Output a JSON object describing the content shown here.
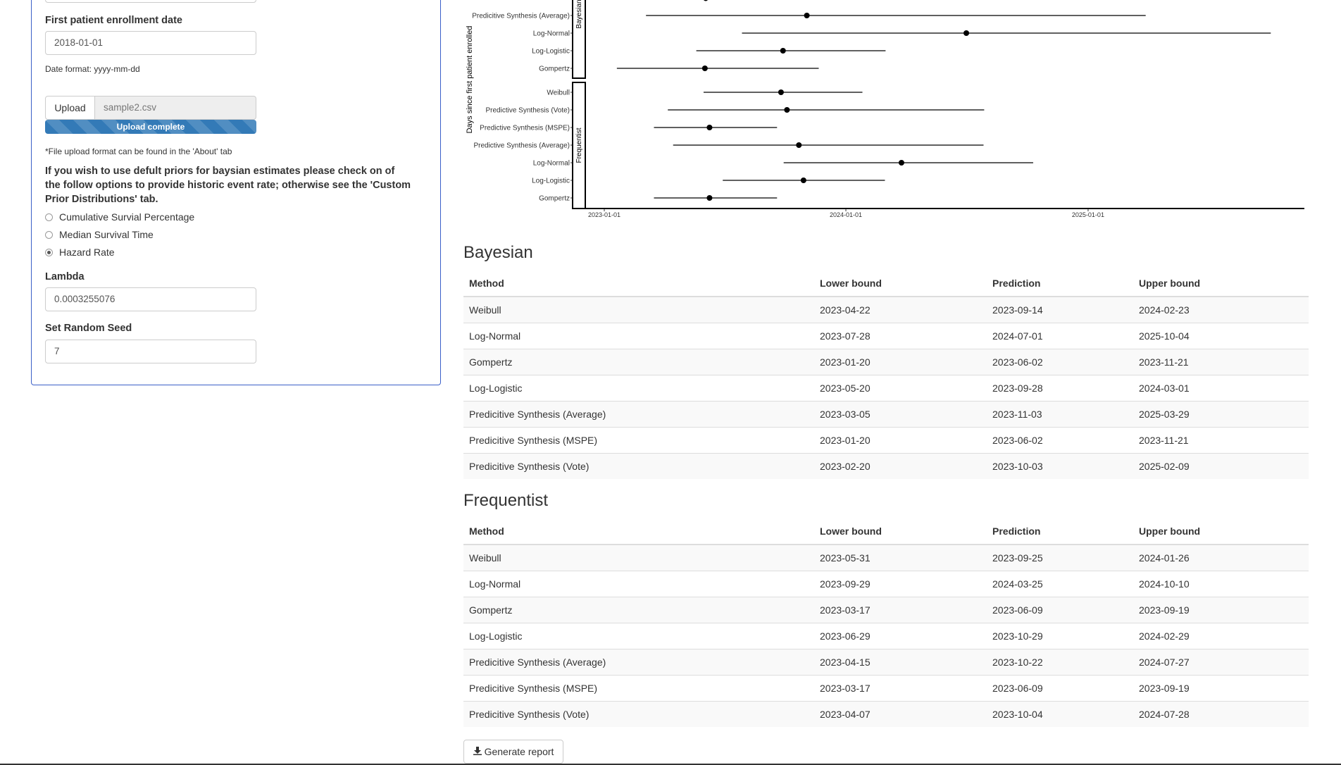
{
  "sidebar": {
    "enrollment_label": "First patient enrollment date",
    "enrollment_value": "2018-01-01",
    "date_format_note": "Date format: yyyy-mm-dd",
    "upload_button": "Upload",
    "upload_filename": "sample2.csv",
    "upload_status": "Upload complete",
    "upload_progress": 1.0,
    "file_format_note": "*File upload format can be found in the 'About' tab",
    "priors_instruction": "If you wish to use defult priors for baysian estimates please check on of the follow options to provide historic event rate; otherwise see the 'Custom Prior Distributions' tab.",
    "prior_options": [
      {
        "label": "Cumulative Survial Percentage",
        "checked": false
      },
      {
        "label": "Median Survival Time",
        "checked": false
      },
      {
        "label": "Hazard Rate",
        "checked": true
      }
    ],
    "lambda_label": "Lambda",
    "lambda_value": "0.0003255076",
    "seed_label": "Set Random Seed",
    "seed_value": "7"
  },
  "chart_data": {
    "type": "scatter",
    "ylabel": "Days since first patient enrolled",
    "x_tick_labels": [
      "2023-01-01",
      "2024-01-01",
      "2025-01-01"
    ],
    "panels": [
      {
        "name": "Bayesian",
        "rows": [
          {
            "label": "Predicitive Synthesis (Average)",
            "lower": "2023-03-05",
            "pred": "2023-11-03",
            "upper": "2025-03-29"
          },
          {
            "label": "Log-Normal",
            "lower": "2023-07-28",
            "pred": "2024-07-01",
            "upper": "2025-10-04"
          },
          {
            "label": "Log-Logistic",
            "lower": "2023-05-20",
            "pred": "2023-09-28",
            "upper": "2024-03-01"
          },
          {
            "label": "Gompertz",
            "lower": "2023-01-20",
            "pred": "2023-06-02",
            "upper": "2023-11-21"
          }
        ]
      },
      {
        "name": "Frequentist",
        "rows": [
          {
            "label": "Weibull",
            "lower": "2023-05-31",
            "pred": "2023-09-25",
            "upper": "2024-01-26"
          },
          {
            "label": "Predictive Synthesis (Vote)",
            "lower": "2023-04-07",
            "pred": "2023-10-04",
            "upper": "2024-07-28"
          },
          {
            "label": "Predictive Synthesis (MSPE)",
            "lower": "2023-03-17",
            "pred": "2023-06-09",
            "upper": "2023-09-19"
          },
          {
            "label": "Predictive Synthesis (Average)",
            "lower": "2023-04-15",
            "pred": "2023-10-22",
            "upper": "2024-07-27"
          },
          {
            "label": "Log-Normal",
            "lower": "2023-09-29",
            "pred": "2024-03-25",
            "upper": "2024-10-10"
          },
          {
            "label": "Log-Logistic",
            "lower": "2023-06-29",
            "pred": "2023-10-29",
            "upper": "2024-02-29"
          },
          {
            "label": "Gompertz",
            "lower": "2023-03-17",
            "pred": "2023-06-09",
            "upper": "2023-09-19"
          }
        ]
      }
    ]
  },
  "bayesian": {
    "title": "Bayesian",
    "headers": [
      "Method",
      "Lower bound",
      "Prediction",
      "Upper bound"
    ],
    "rows": [
      [
        "Weibull",
        "2023-04-22",
        "2023-09-14",
        "2024-02-23"
      ],
      [
        "Log-Normal",
        "2023-07-28",
        "2024-07-01",
        "2025-10-04"
      ],
      [
        "Gompertz",
        "2023-01-20",
        "2023-06-02",
        "2023-11-21"
      ],
      [
        "Log-Logistic",
        "2023-05-20",
        "2023-09-28",
        "2024-03-01"
      ],
      [
        "Predicitive Synthesis (Average)",
        "2023-03-05",
        "2023-11-03",
        "2025-03-29"
      ],
      [
        "Predicitive Synthesis (MSPE)",
        "2023-01-20",
        "2023-06-02",
        "2023-11-21"
      ],
      [
        "Predicitive Synthesis (Vote)",
        "2023-02-20",
        "2023-10-03",
        "2025-02-09"
      ]
    ]
  },
  "frequentist": {
    "title": "Frequentist",
    "headers": [
      "Method",
      "Lower bound",
      "Prediction",
      "Upper bound"
    ],
    "rows": [
      [
        "Weibull",
        "2023-05-31",
        "2023-09-25",
        "2024-01-26"
      ],
      [
        "Log-Normal",
        "2023-09-29",
        "2024-03-25",
        "2024-10-10"
      ],
      [
        "Gompertz",
        "2023-03-17",
        "2023-06-09",
        "2023-09-19"
      ],
      [
        "Log-Logistic",
        "2023-06-29",
        "2023-10-29",
        "2024-02-29"
      ],
      [
        "Predicitive Synthesis (Average)",
        "2023-04-15",
        "2023-10-22",
        "2024-07-27"
      ],
      [
        "Predicitive Synthesis (MSPE)",
        "2023-03-17",
        "2023-06-09",
        "2023-09-19"
      ],
      [
        "Predicitive Synthesis (Vote)",
        "2023-04-07",
        "2023-10-04",
        "2024-07-28"
      ]
    ]
  },
  "report_button": "Generate report",
  "colors": {
    "accent": "#337ab7",
    "panel_border": "#3a5fc8"
  }
}
